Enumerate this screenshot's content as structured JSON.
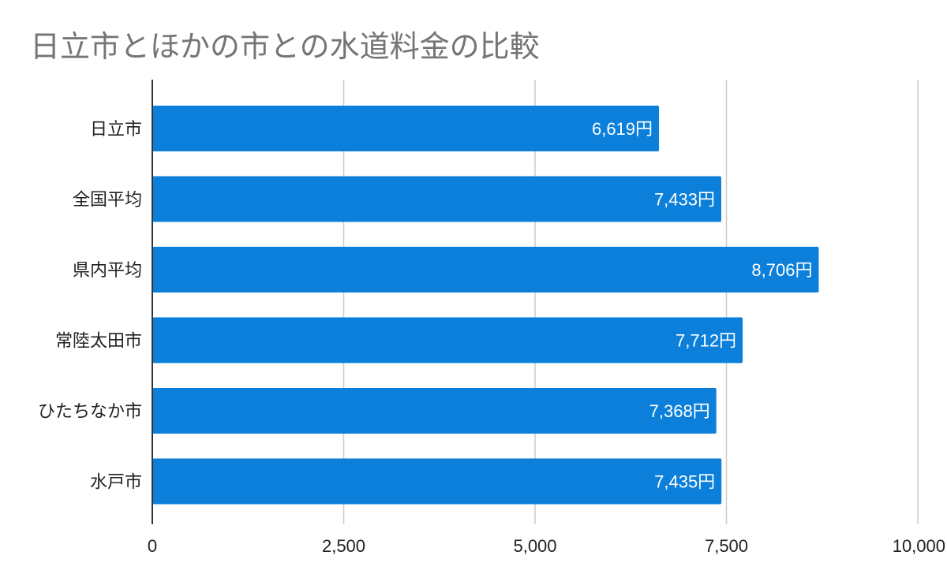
{
  "chart_data": {
    "type": "bar",
    "orientation": "horizontal",
    "title": "日立市とほかの市との水道料金の比較",
    "categories": [
      "日立市",
      "全国平均",
      "県内平均",
      "常陸太田市",
      "ひたちなか市",
      "水戸市"
    ],
    "values": [
      6619,
      7433,
      8706,
      7712,
      7368,
      7435
    ],
    "data_labels": [
      "6,619円",
      "7,433円",
      "8,706円",
      "7,712円",
      "7,368円",
      "7,435円"
    ],
    "xlim": [
      0,
      10000
    ],
    "xticks": [
      0,
      2500,
      5000,
      7500,
      10000
    ],
    "xtick_labels": [
      "0",
      "2,500",
      "5,000",
      "7,500",
      "10,000"
    ],
    "grid": true,
    "legend": "none",
    "bar_color": "#0b7fd9",
    "grid_color": "#cccccc",
    "axis_color": "#333333"
  }
}
